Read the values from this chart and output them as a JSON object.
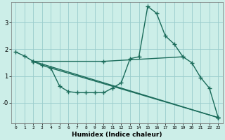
{
  "title": "",
  "xlabel": "Humidex (Indice chaleur)",
  "xlim": [
    -0.5,
    23.5
  ],
  "ylim": [
    -0.75,
    3.75
  ],
  "background_color": "#cceee8",
  "grid_color": "#99cccc",
  "line_color": "#1a6b5a",
  "xticks": [
    0,
    1,
    2,
    3,
    4,
    5,
    6,
    7,
    8,
    9,
    10,
    11,
    12,
    13,
    14,
    15,
    16,
    17,
    18,
    19,
    20,
    21,
    22,
    23
  ],
  "yticks": [
    0,
    1,
    2,
    3
  ],
  "ytick_labels": [
    "-0",
    "1",
    "2",
    "3"
  ],
  "series": [
    {
      "x": [
        0,
        1,
        2,
        3,
        4,
        5,
        6,
        7,
        8,
        9,
        10,
        11,
        12,
        13,
        14,
        15,
        16,
        17,
        18,
        19,
        20,
        21,
        22,
        23
      ],
      "y": [
        1.9,
        1.75,
        1.55,
        1.4,
        1.3,
        0.62,
        0.42,
        0.38,
        0.38,
        0.38,
        0.38,
        0.55,
        0.75,
        1.65,
        1.72,
        3.6,
        3.35,
        2.5,
        2.2,
        1.72,
        1.5,
        0.95,
        0.55,
        -0.55
      ]
    },
    {
      "x": [
        2,
        10,
        19
      ],
      "y": [
        1.55,
        1.55,
        1.72
      ]
    },
    {
      "x": [
        2,
        23
      ],
      "y": [
        1.55,
        -0.55
      ]
    },
    {
      "x": [
        4,
        23
      ],
      "y": [
        1.3,
        -0.55
      ]
    }
  ]
}
